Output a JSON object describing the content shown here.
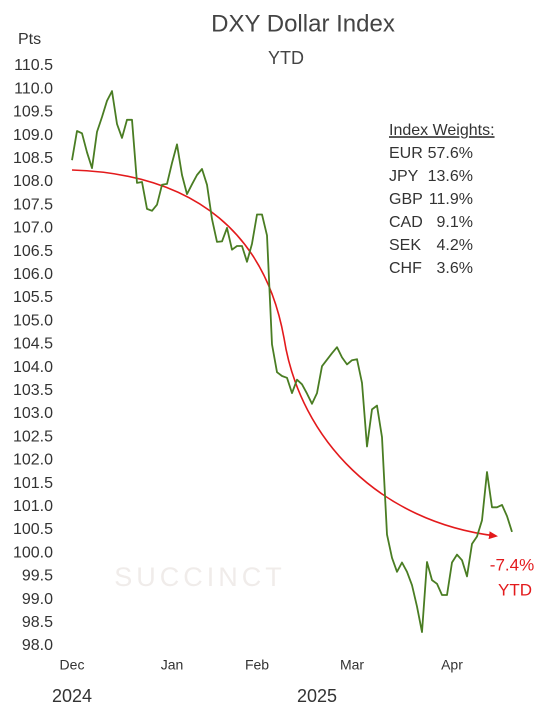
{
  "chart_data": {
    "type": "line",
    "title": "DXY Dollar Index",
    "subtitle": "YTD",
    "y_axis_label": "Pts",
    "categories": [
      "Dec",
      null,
      null,
      null,
      null,
      null,
      null,
      null,
      null,
      null,
      null,
      null,
      null,
      null,
      null,
      null,
      null,
      null,
      null,
      null,
      "Jan",
      null,
      null,
      null,
      null,
      null,
      null,
      null,
      null,
      null,
      null,
      null,
      null,
      null,
      null,
      null,
      null,
      "Feb",
      null,
      null,
      null,
      null,
      null,
      null,
      null,
      null,
      null,
      null,
      null,
      null,
      null,
      null,
      null,
      null,
      null,
      null,
      "Mar",
      null,
      null,
      null,
      null,
      null,
      null,
      null,
      null,
      null,
      null,
      null,
      null,
      null,
      null,
      null,
      null,
      null,
      null,
      null,
      "Apr",
      null,
      null,
      null,
      null,
      null,
      null,
      null,
      null,
      null,
      null,
      null,
      null
    ],
    "year_labels": [
      {
        "index": 0,
        "label": "2024"
      },
      {
        "index": 49,
        "label": "2025"
      }
    ],
    "series": [
      {
        "name": "DXY",
        "color": "#4a7d23",
        "values": [
          108.47,
          109.1,
          109.05,
          108.64,
          108.3,
          109.08,
          109.4,
          109.75,
          109.96,
          109.25,
          108.95,
          109.34,
          109.34,
          107.98,
          108.0,
          107.42,
          107.38,
          107.51,
          107.94,
          107.96,
          108.41,
          108.81,
          108.15,
          107.74,
          107.95,
          108.15,
          108.28,
          107.94,
          107.2,
          106.71,
          106.72,
          107.01,
          106.54,
          106.62,
          106.62,
          106.28,
          106.67,
          107.3,
          107.3,
          106.85,
          104.5,
          103.9,
          103.82,
          103.78,
          103.45,
          103.74,
          103.64,
          103.44,
          103.22,
          103.45,
          104.03,
          104.17,
          104.31,
          104.44,
          104.22,
          104.07,
          104.16,
          104.18,
          103.67,
          102.3,
          103.1,
          103.18,
          102.5,
          100.4,
          99.9,
          99.6,
          99.8,
          99.6,
          99.31,
          98.85,
          98.3,
          99.81,
          99.42,
          99.34,
          99.1,
          99.1,
          99.8,
          99.97,
          99.85,
          99.5,
          100.2,
          100.36,
          100.71,
          101.75,
          100.99,
          100.99,
          101.04,
          100.8,
          100.46
        ]
      }
    ],
    "ylim": [
      98,
      110.5
    ],
    "yticks": [
      {
        "value": 98,
        "label": "98.0"
      },
      98.5,
      {
        "value": 99,
        "label": "99.0"
      },
      99.5,
      {
        "value": 100,
        "label": "100.0"
      },
      100.5,
      {
        "value": 101,
        "label": "101.0"
      },
      101.5,
      {
        "value": 102,
        "label": "102.0"
      },
      102.5,
      {
        "value": 103,
        "label": "103.0"
      },
      103.5,
      {
        "value": 104,
        "label": "104.0"
      },
      104.5,
      {
        "value": 105,
        "label": "105.0"
      },
      105.5,
      {
        "value": 106,
        "label": "106.0"
      },
      106.5,
      {
        "value": 107,
        "label": "107.0"
      },
      107.5,
      {
        "value": 108,
        "label": "108.0"
      },
      108.5,
      {
        "value": 109,
        "label": "109.0"
      },
      109.5,
      {
        "value": 110,
        "label": "110.0"
      },
      110.5
    ],
    "grid": false,
    "weights_title": "Index Weights:",
    "weights": [
      {
        "code": "EUR",
        "weight": "57.6%"
      },
      {
        "code": "JPY",
        "weight": "13.6%"
      },
      {
        "code": "GBP",
        "weight": "11.9%"
      },
      {
        "code": "CAD",
        "weight": "9.1%"
      },
      {
        "code": "SEK",
        "weight": "4.2%"
      },
      {
        "code": "CHF",
        "weight": "3.6%"
      }
    ],
    "change_label": "-7.4%",
    "change_period": "YTD",
    "trend_color": "#e31a1c",
    "watermark": "SUCCINCT"
  }
}
